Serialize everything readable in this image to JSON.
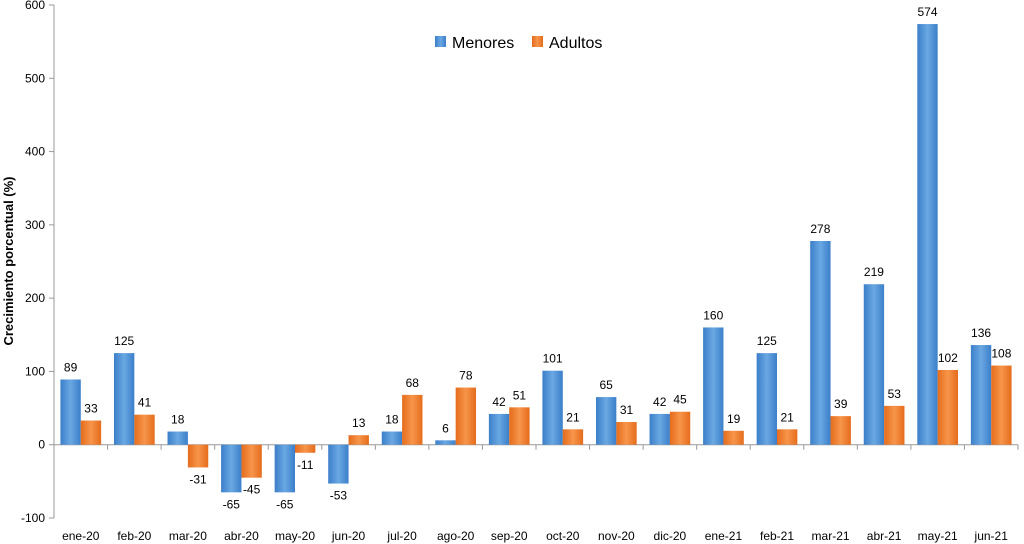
{
  "chart_data": {
    "type": "bar",
    "ylabel": "Crecimiento porcentual (%)",
    "xlabel": "",
    "ylim": [
      -100,
      600
    ],
    "yticks": [
      -100,
      0,
      100,
      200,
      300,
      400,
      500,
      600
    ],
    "legend_position": "top-center",
    "grid": false,
    "categories": [
      "ene-20",
      "feb-20",
      "mar-20",
      "abr-20",
      "may-20",
      "jun-20",
      "jul-20",
      "ago-20",
      "sep-20",
      "oct-20",
      "nov-20",
      "dic-20",
      "ene-21",
      "feb-21",
      "mar-21",
      "abr-21",
      "may-21",
      "jun-21"
    ],
    "series": [
      {
        "name": "Menores",
        "color": "#4f90d4",
        "values": [
          89,
          125,
          18,
          -65,
          -65,
          -53,
          18,
          6,
          42,
          101,
          65,
          42,
          160,
          125,
          278,
          219,
          574,
          136
        ],
        "labels": [
          "89",
          "125",
          "18",
          "-65",
          "-65",
          "-53",
          "18",
          "6",
          "42",
          "101",
          "65",
          "42",
          "160",
          "125",
          "278",
          "219",
          "574",
          "136"
        ]
      },
      {
        "name": "Adultos",
        "color": "#ef7b2a",
        "values": [
          33,
          41,
          -31,
          -45,
          -11,
          13,
          68,
          78,
          51,
          21,
          31,
          45,
          19,
          21,
          39,
          53,
          102,
          108
        ],
        "labels": [
          "33",
          "41",
          "-31",
          "-45",
          "-11",
          "13",
          "68",
          "78",
          "51",
          "21",
          "31",
          "45",
          "19",
          "21",
          "39",
          "53",
          "102",
          "108"
        ]
      }
    ]
  }
}
